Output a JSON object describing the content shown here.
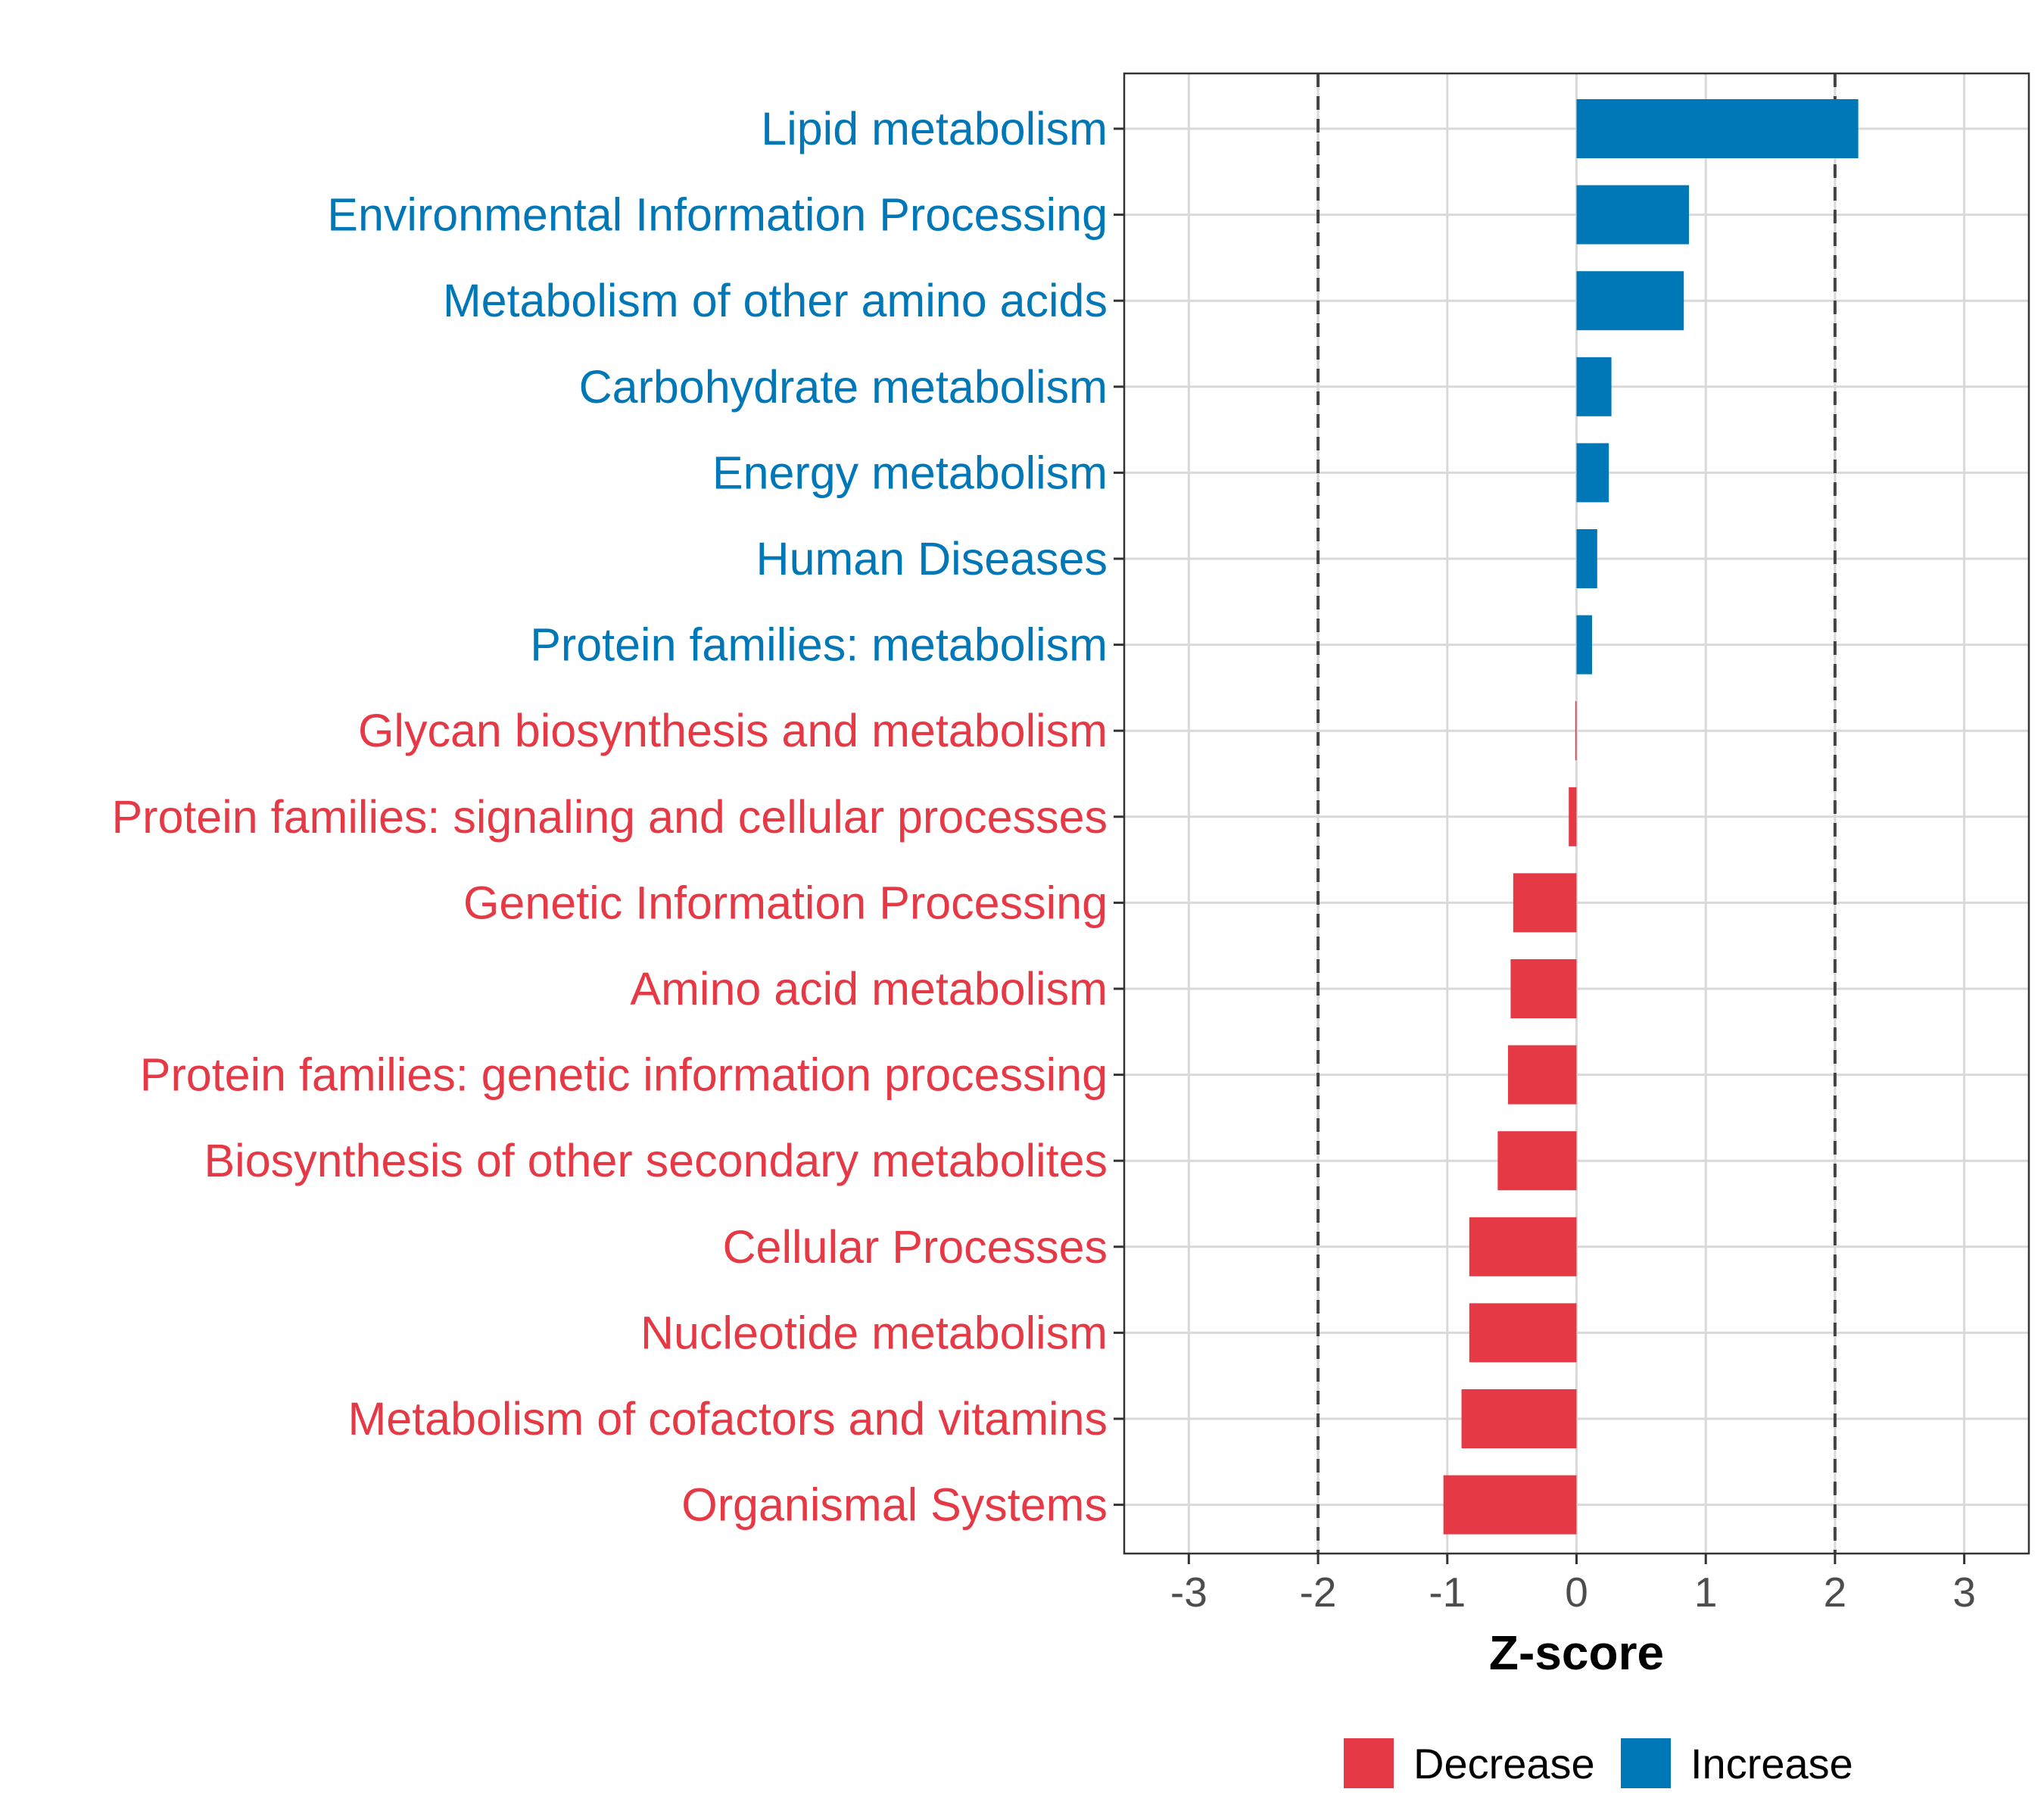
{
  "chart_data": {
    "type": "bar",
    "orientation": "horizontal",
    "xlabel": "Z-score",
    "xlim": [
      -3.5,
      3.5
    ],
    "x_ticks": [
      -3,
      -2,
      -1,
      0,
      1,
      2,
      3
    ],
    "x_tick_labels": [
      "-3",
      "-2",
      "-1",
      "0",
      "1",
      "2",
      "3"
    ],
    "reference_lines": [
      -2,
      2
    ],
    "categories": [
      "Lipid metabolism",
      "Environmental Information Processing",
      "Metabolism of other amino acids",
      "Carbohydrate metabolism",
      "Energy metabolism",
      "Human Diseases",
      "Protein families: metabolism",
      "Glycan biosynthesis and metabolism",
      "Protein families: signaling and cellular processes",
      "Genetic Information Processing",
      "Amino acid metabolism",
      "Protein families: genetic information processing",
      "Biosynthesis of other secondary metabolites",
      "Cellular Processes",
      "Nucleotide metabolism",
      "Metabolism of cofactors and vitamins",
      "Organismal Systems"
    ],
    "values": [
      2.18,
      0.87,
      0.83,
      0.27,
      0.25,
      0.16,
      0.12,
      -0.01,
      -0.06,
      -0.49,
      -0.51,
      -0.53,
      -0.61,
      -0.83,
      -0.83,
      -0.89,
      -1.03
    ],
    "groups": [
      "Increase",
      "Increase",
      "Increase",
      "Increase",
      "Increase",
      "Increase",
      "Increase",
      "Decrease",
      "Decrease",
      "Decrease",
      "Decrease",
      "Decrease",
      "Decrease",
      "Decrease",
      "Decrease",
      "Decrease",
      "Decrease"
    ],
    "legend": {
      "position": "bottom",
      "entries": [
        {
          "label": "Decrease",
          "color": "#e63946"
        },
        {
          "label": "Increase",
          "color": "#0077b6"
        }
      ]
    },
    "colors": {
      "Increase": "#0077b6",
      "Decrease": "#e63946"
    },
    "grid": true
  }
}
